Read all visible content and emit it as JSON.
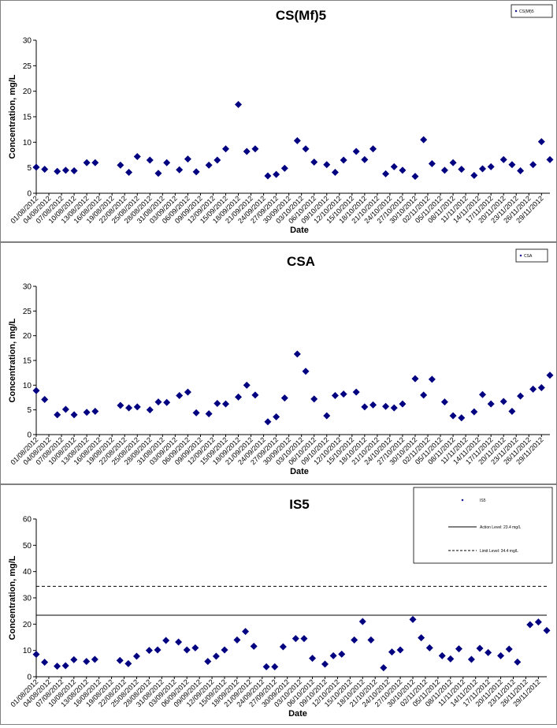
{
  "chart_data": [
    {
      "type": "scatter",
      "title": "CS(Mf)5",
      "xlabel": "Date",
      "ylabel": "Concentration, mg/L",
      "ylim": [
        0,
        30
      ],
      "yticks": [
        0,
        5,
        10,
        15,
        20,
        25,
        30
      ],
      "legend_placement": "top-right",
      "grid": false,
      "x_tick_labels": [
        "01/08/2012",
        "04/08/2012",
        "07/08/2012",
        "10/08/2012",
        "13/08/2012",
        "16/08/2012",
        "19/08/2012",
        "22/08/2012",
        "25/08/2012",
        "28/08/2012",
        "31/08/2012",
        "03/09/2012",
        "06/09/2012",
        "09/09/2012",
        "12/09/2012",
        "15/09/2012",
        "18/09/2012",
        "21/09/2012",
        "24/09/2012",
        "27/09/2012",
        "30/09/2012",
        "03/10/2012",
        "06/10/2012",
        "09/10/2012",
        "12/10/2012",
        "15/10/2012",
        "18/10/2012",
        "21/10/2012",
        "24/10/2012",
        "27/10/2012",
        "30/10/2012",
        "02/11/2012",
        "05/11/2012",
        "08/11/2012",
        "11/11/2012",
        "14/11/2012",
        "17/11/2012",
        "20/11/2012",
        "23/11/2012",
        "26/11/2012",
        "29/11/2012"
      ],
      "series": [
        {
          "name": "CS(Mf)5",
          "marker": "diamond",
          "color": "#000080",
          "points": [
            [
              "01/08/2012",
              5.1
            ],
            [
              "03/08/2012",
              4.7
            ],
            [
              "06/08/2012",
              4.3
            ],
            [
              "08/08/2012",
              4.5
            ],
            [
              "10/08/2012",
              4.4
            ],
            [
              "13/08/2012",
              6.0
            ],
            [
              "15/08/2012",
              6.0
            ],
            [
              "21/08/2012",
              5.5
            ],
            [
              "23/08/2012",
              4.1
            ],
            [
              "25/08/2012",
              7.2
            ],
            [
              "28/08/2012",
              6.5
            ],
            [
              "30/08/2012",
              3.9
            ],
            [
              "01/09/2012",
              6.0
            ],
            [
              "04/09/2012",
              4.6
            ],
            [
              "06/09/2012",
              6.7
            ],
            [
              "08/09/2012",
              4.2
            ],
            [
              "11/09/2012",
              5.5
            ],
            [
              "13/09/2012",
              6.5
            ],
            [
              "15/09/2012",
              8.7
            ],
            [
              "18/09/2012",
              17.4
            ],
            [
              "20/09/2012",
              8.2
            ],
            [
              "22/09/2012",
              8.7
            ],
            [
              "25/09/2012",
              3.4
            ],
            [
              "27/09/2012",
              3.7
            ],
            [
              "29/09/2012",
              4.9
            ],
            [
              "02/10/2012",
              10.3
            ],
            [
              "04/10/2012",
              8.7
            ],
            [
              "06/10/2012",
              6.1
            ],
            [
              "09/10/2012",
              5.6
            ],
            [
              "11/10/2012",
              4.1
            ],
            [
              "13/10/2012",
              6.5
            ],
            [
              "16/10/2012",
              8.2
            ],
            [
              "18/10/2012",
              6.6
            ],
            [
              "20/10/2012",
              8.7
            ],
            [
              "23/10/2012",
              3.8
            ],
            [
              "25/10/2012",
              5.2
            ],
            [
              "27/10/2012",
              4.5
            ],
            [
              "30/10/2012",
              3.3
            ],
            [
              "01/11/2012",
              10.5
            ],
            [
              "03/11/2012",
              5.8
            ],
            [
              "06/11/2012",
              4.5
            ],
            [
              "08/11/2012",
              6.0
            ],
            [
              "10/11/2012",
              4.7
            ],
            [
              "13/11/2012",
              3.5
            ],
            [
              "15/11/2012",
              4.8
            ],
            [
              "17/11/2012",
              5.2
            ],
            [
              "20/11/2012",
              6.6
            ],
            [
              "22/11/2012",
              5.6
            ],
            [
              "24/11/2012",
              4.4
            ],
            [
              "27/11/2012",
              5.6
            ],
            [
              "29/11/2012",
              10.1
            ],
            [
              "01/12/2012",
              6.6
            ]
          ]
        }
      ]
    },
    {
      "type": "scatter",
      "title": "CSA",
      "xlabel": "Date",
      "ylabel": "Concentration, mg/L",
      "ylim": [
        0,
        30
      ],
      "yticks": [
        0,
        5,
        10,
        15,
        20,
        25,
        30
      ],
      "legend_placement": "top-right",
      "grid": false,
      "x_tick_labels": [
        "01/08/2012",
        "04/08/2012",
        "07/08/2012",
        "10/08/2012",
        "13/08/2012",
        "16/08/2012",
        "19/08/2012",
        "22/08/2012",
        "25/08/2012",
        "28/08/2012",
        "31/08/2012",
        "03/09/2012",
        "06/09/2012",
        "09/09/2012",
        "12/09/2012",
        "15/09/2012",
        "18/09/2012",
        "21/09/2012",
        "24/09/2012",
        "27/09/2012",
        "30/09/2012",
        "03/10/2012",
        "06/10/2012",
        "09/10/2012",
        "12/10/2012",
        "15/10/2012",
        "18/10/2012",
        "21/10/2012",
        "24/10/2012",
        "27/10/2012",
        "30/10/2012",
        "02/11/2012",
        "05/11/2012",
        "08/11/2012",
        "11/11/2012",
        "14/11/2012",
        "17/11/2012",
        "20/11/2012",
        "23/11/2012",
        "26/11/2012",
        "29/11/2012"
      ],
      "series": [
        {
          "name": "CSA",
          "marker": "diamond",
          "color": "#000080",
          "points": [
            [
              "01/08/2012",
              8.9
            ],
            [
              "03/08/2012",
              7.1
            ],
            [
              "06/08/2012",
              4.0
            ],
            [
              "08/08/2012",
              5.1
            ],
            [
              "10/08/2012",
              4.0
            ],
            [
              "13/08/2012",
              4.5
            ],
            [
              "15/08/2012",
              4.7
            ],
            [
              "21/08/2012",
              5.9
            ],
            [
              "23/08/2012",
              5.4
            ],
            [
              "25/08/2012",
              5.6
            ],
            [
              "28/08/2012",
              5.0
            ],
            [
              "30/08/2012",
              6.6
            ],
            [
              "01/09/2012",
              6.5
            ],
            [
              "04/09/2012",
              7.9
            ],
            [
              "06/09/2012",
              8.6
            ],
            [
              "08/09/2012",
              4.4
            ],
            [
              "11/09/2012",
              4.2
            ],
            [
              "13/09/2012",
              6.3
            ],
            [
              "15/09/2012",
              6.2
            ],
            [
              "18/09/2012",
              7.6
            ],
            [
              "20/09/2012",
              10.0
            ],
            [
              "22/09/2012",
              8.0
            ],
            [
              "25/09/2012",
              2.6
            ],
            [
              "27/09/2012",
              3.6
            ],
            [
              "29/09/2012",
              7.4
            ],
            [
              "02/10/2012",
              16.3
            ],
            [
              "04/10/2012",
              12.8
            ],
            [
              "06/10/2012",
              7.2
            ],
            [
              "09/10/2012",
              3.8
            ],
            [
              "11/10/2012",
              7.9
            ],
            [
              "13/10/2012",
              8.2
            ],
            [
              "16/10/2012",
              8.6
            ],
            [
              "18/10/2012",
              5.6
            ],
            [
              "20/10/2012",
              6.0
            ],
            [
              "23/10/2012",
              5.7
            ],
            [
              "25/10/2012",
              5.4
            ],
            [
              "27/10/2012",
              6.2
            ],
            [
              "30/10/2012",
              11.3
            ],
            [
              "01/11/2012",
              8.0
            ],
            [
              "03/11/2012",
              11.2
            ],
            [
              "06/11/2012",
              6.6
            ],
            [
              "08/11/2012",
              3.8
            ],
            [
              "10/11/2012",
              3.4
            ],
            [
              "13/11/2012",
              4.6
            ],
            [
              "15/11/2012",
              8.1
            ],
            [
              "17/11/2012",
              6.2
            ],
            [
              "20/11/2012",
              6.7
            ],
            [
              "22/11/2012",
              4.7
            ],
            [
              "24/11/2012",
              7.8
            ],
            [
              "27/11/2012",
              9.2
            ],
            [
              "29/11/2012",
              9.5
            ],
            [
              "01/12/2012",
              12.0
            ]
          ]
        }
      ]
    },
    {
      "type": "scatter",
      "title": "IS5",
      "xlabel": "Date",
      "ylabel": "Concentration, mg/L",
      "ylim": [
        0,
        60
      ],
      "yticks": [
        0,
        10,
        20,
        30,
        40,
        50,
        60
      ],
      "legend_placement": "top-right",
      "grid": false,
      "x_tick_labels": [
        "01/08/2012",
        "04/08/2012",
        "07/08/2012",
        "10/08/2012",
        "13/08/2012",
        "16/08/2012",
        "19/08/2012",
        "22/08/2012",
        "25/08/2012",
        "28/08/2012",
        "31/08/2012",
        "03/09/2012",
        "06/09/2012",
        "09/09/2012",
        "12/09/2012",
        "15/09/2012",
        "18/09/2012",
        "21/09/2012",
        "24/09/2012",
        "27/09/2012",
        "30/09/2012",
        "03/10/2012",
        "06/10/2012",
        "09/10/2012",
        "12/10/2012",
        "15/10/2012",
        "18/10/2012",
        "21/10/2012",
        "24/10/2012",
        "27/10/2012",
        "30/10/2012",
        "02/11/2012",
        "05/11/2012",
        "08/11/2012",
        "11/11/2012",
        "14/11/2012",
        "17/11/2012",
        "20/11/2012",
        "23/11/2012",
        "26/11/2012",
        "29/11/2012"
      ],
      "series": [
        {
          "name": "IS5",
          "marker": "diamond",
          "color": "#000080",
          "points": [
            [
              "01/08/2012",
              8.5
            ],
            [
              "03/08/2012",
              5.5
            ],
            [
              "06/08/2012",
              4.0
            ],
            [
              "08/08/2012",
              4.2
            ],
            [
              "10/08/2012",
              6.5
            ],
            [
              "13/08/2012",
              5.8
            ],
            [
              "15/08/2012",
              6.6
            ],
            [
              "21/08/2012",
              6.2
            ],
            [
              "23/08/2012",
              5.0
            ],
            [
              "25/08/2012",
              7.8
            ],
            [
              "28/08/2012",
              10.0
            ],
            [
              "30/08/2012",
              10.2
            ],
            [
              "01/09/2012",
              13.8
            ],
            [
              "04/09/2012",
              13.2
            ],
            [
              "06/09/2012",
              10.2
            ],
            [
              "08/09/2012",
              11.0
            ],
            [
              "11/09/2012",
              5.8
            ],
            [
              "13/09/2012",
              7.8
            ],
            [
              "15/09/2012",
              10.2
            ],
            [
              "18/09/2012",
              14.0
            ],
            [
              "20/09/2012",
              17.2
            ],
            [
              "22/09/2012",
              11.6
            ],
            [
              "25/09/2012",
              3.8
            ],
            [
              "27/09/2012",
              3.8
            ],
            [
              "29/09/2012",
              11.4
            ],
            [
              "02/10/2012",
              14.5
            ],
            [
              "04/10/2012",
              14.5
            ],
            [
              "06/10/2012",
              7.0
            ],
            [
              "09/10/2012",
              4.8
            ],
            [
              "11/10/2012",
              8.0
            ],
            [
              "13/10/2012",
              8.6
            ],
            [
              "16/10/2012",
              14.0
            ],
            [
              "18/10/2012",
              21.0
            ],
            [
              "20/10/2012",
              14.0
            ],
            [
              "23/10/2012",
              3.4
            ],
            [
              "25/10/2012",
              9.4
            ],
            [
              "27/10/2012",
              10.2
            ],
            [
              "30/10/2012",
              21.8
            ],
            [
              "01/11/2012",
              14.8
            ],
            [
              "03/11/2012",
              11.0
            ],
            [
              "06/11/2012",
              8.0
            ],
            [
              "08/11/2012",
              6.8
            ],
            [
              "10/11/2012",
              10.6
            ],
            [
              "13/11/2012",
              6.6
            ],
            [
              "15/11/2012",
              10.8
            ],
            [
              "17/11/2012",
              9.2
            ],
            [
              "20/11/2012",
              8.0
            ],
            [
              "22/11/2012",
              10.5
            ],
            [
              "24/11/2012",
              5.6
            ],
            [
              "27/11/2012",
              19.8
            ],
            [
              "29/11/2012",
              20.8
            ],
            [
              "01/12/2012",
              17.6
            ]
          ]
        }
      ],
      "reference_lines": [
        {
          "name": "Action Level: 23.4 mg/L",
          "value": 23.4,
          "style": "solid"
        },
        {
          "name": "Limit Level: 34.4 mg/L",
          "value": 34.4,
          "style": "dashed"
        }
      ]
    }
  ]
}
